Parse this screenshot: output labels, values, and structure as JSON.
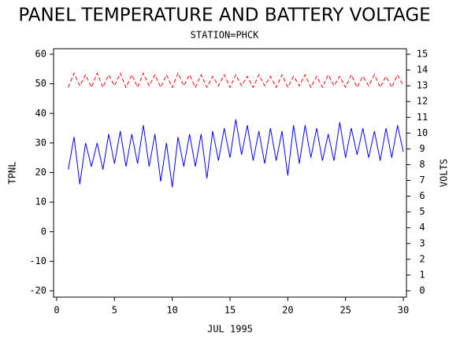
{
  "chart_data": {
    "type": "line",
    "title": "PANEL TEMPERATURE AND BATTERY VOLTAGE",
    "subtitle": "STATION=PHCK",
    "x_label": "JUL 1995",
    "y_label": "TPNL",
    "y2_label": "VOLTS",
    "x": [
      1,
      1.5,
      2,
      2.5,
      3,
      3.5,
      4,
      4.5,
      5,
      5.5,
      6,
      6.5,
      7,
      7.5,
      8,
      8.5,
      9,
      9.5,
      10,
      10.5,
      11,
      11.5,
      12,
      12.5,
      13,
      13.5,
      14,
      14.5,
      15,
      15.5,
      16,
      16.5,
      17,
      17.5,
      18,
      18.5,
      19,
      19.5,
      20,
      20.5,
      21,
      21.5,
      22,
      22.5,
      23,
      23.5,
      24,
      24.5,
      25,
      25.5,
      26,
      26.5,
      27,
      27.5,
      28,
      28.5,
      29,
      29.5,
      30
    ],
    "series": [
      {
        "color": "#0000ff",
        "values": [
          21,
          32,
          16,
          30,
          22,
          30,
          21,
          33,
          23,
          34,
          22,
          33,
          23,
          36,
          22,
          33,
          17,
          30,
          15,
          32,
          22,
          33,
          22,
          33,
          18,
          34,
          24,
          35,
          25,
          38,
          26,
          36,
          24,
          34,
          23,
          35,
          24,
          34,
          19,
          36,
          23,
          36,
          25,
          35,
          24,
          33,
          24,
          37,
          25,
          35,
          26,
          35,
          25,
          34,
          24,
          35,
          25,
          36,
          27
        ]
      },
      {
        "color": "#ff0000",
        "axis": "y2",
        "dashed": true,
        "values": [
          12.9,
          13.8,
          13.0,
          13.7,
          12.9,
          13.8,
          12.9,
          13.7,
          13.0,
          13.8,
          12.9,
          13.7,
          12.9,
          13.8,
          13.0,
          13.7,
          12.9,
          13.7,
          12.9,
          13.8,
          13.0,
          13.7,
          12.9,
          13.7,
          12.9,
          13.6,
          13.0,
          13.7,
          12.9,
          13.7,
          13.0,
          13.6,
          12.9,
          13.7,
          13.0,
          13.6,
          12.9,
          13.7,
          12.9,
          13.6,
          13.0,
          13.7,
          12.9,
          13.6,
          12.9,
          13.7,
          13.0,
          13.6,
          12.9,
          13.7,
          12.9,
          13.6,
          13.0,
          13.7,
          12.9,
          13.6,
          12.9,
          13.7,
          13.0
        ]
      }
    ],
    "xlim": [
      0,
      30
    ],
    "xticks": [
      0,
      5,
      10,
      15,
      20,
      25,
      30
    ],
    "ylim": [
      -20,
      60
    ],
    "yticks": [
      -20,
      -10,
      0,
      10,
      20,
      30,
      40,
      50,
      60
    ],
    "y2lim": [
      0,
      15
    ],
    "y2ticks": [
      0,
      1,
      2,
      3,
      4,
      5,
      6,
      7,
      8,
      9,
      10,
      11,
      12,
      13,
      14,
      15
    ]
  }
}
